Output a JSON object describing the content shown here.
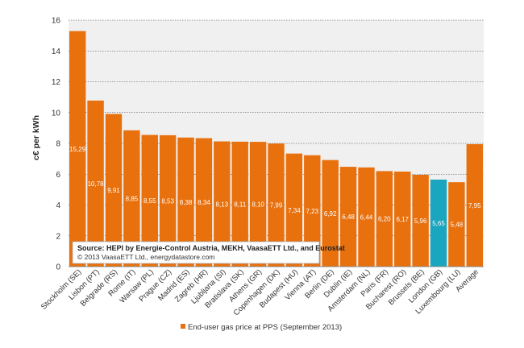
{
  "chart_data": {
    "type": "bar",
    "title": "",
    "xlabel": "",
    "ylabel": "c€ per kWh",
    "ylim": [
      0,
      16
    ],
    "yticks": [
      0,
      2,
      4,
      6,
      8,
      10,
      12,
      14,
      16
    ],
    "grid": true,
    "legend_position": "bottom-center",
    "categories": [
      "Stockholm (SE)",
      "Lisbon (PT)",
      "Belgrade (RS)",
      "Rome (IT)",
      "Warsaw (PL)",
      "Prague (CZ)",
      "Madrid (ES)",
      "Zagreb (HR)",
      "Ljubljana (SI)",
      "Bratislava (SK)",
      "Athens (GR)",
      "Copenhagen (DK)",
      "Budapest (HU)",
      "Vienna (AT)",
      "Berlin (DE)",
      "Dublin (IE)",
      "Amsterdam (NL)",
      "Paris (FR)",
      "Bucharest (RO)",
      "Brussels (BE)",
      "London (GB)",
      "Luxembourg (LU)",
      "Average"
    ],
    "series": [
      {
        "name": "End-user gas price at PPS (September 2013)",
        "values": [
          15.29,
          10.78,
          9.91,
          8.85,
          8.55,
          8.53,
          8.38,
          8.34,
          8.13,
          8.11,
          8.1,
          7.99,
          7.34,
          7.23,
          6.92,
          6.48,
          6.44,
          6.2,
          6.17,
          5.96,
          5.65,
          5.48,
          7.95
        ],
        "labels": [
          "15,29",
          "10,78",
          "9,91",
          "8,85",
          "8,55",
          "8,53",
          "8,38",
          "8,34",
          "8,13",
          "8,11",
          "8,10",
          "7,99",
          "7,34",
          "7,23",
          "6,92",
          "6,48",
          "6,44",
          "6,20",
          "6,17",
          "5,96",
          "5,65",
          "5,48",
          "7,95"
        ],
        "color": "#e8700d",
        "highlight_index": 20,
        "highlight_color": "#1aa6be"
      }
    ],
    "source_note": {
      "title": "Source: HEPI by Energie-Control  Austria, MEKH, VaasaETT Ltd., and Eurostat",
      "subtitle": "© 2013  VaasaETT Ltd., energydatastore.com"
    },
    "colors": {
      "plot_background": "#f0f0f0",
      "grid": "#444444",
      "axis": "#888888"
    }
  }
}
